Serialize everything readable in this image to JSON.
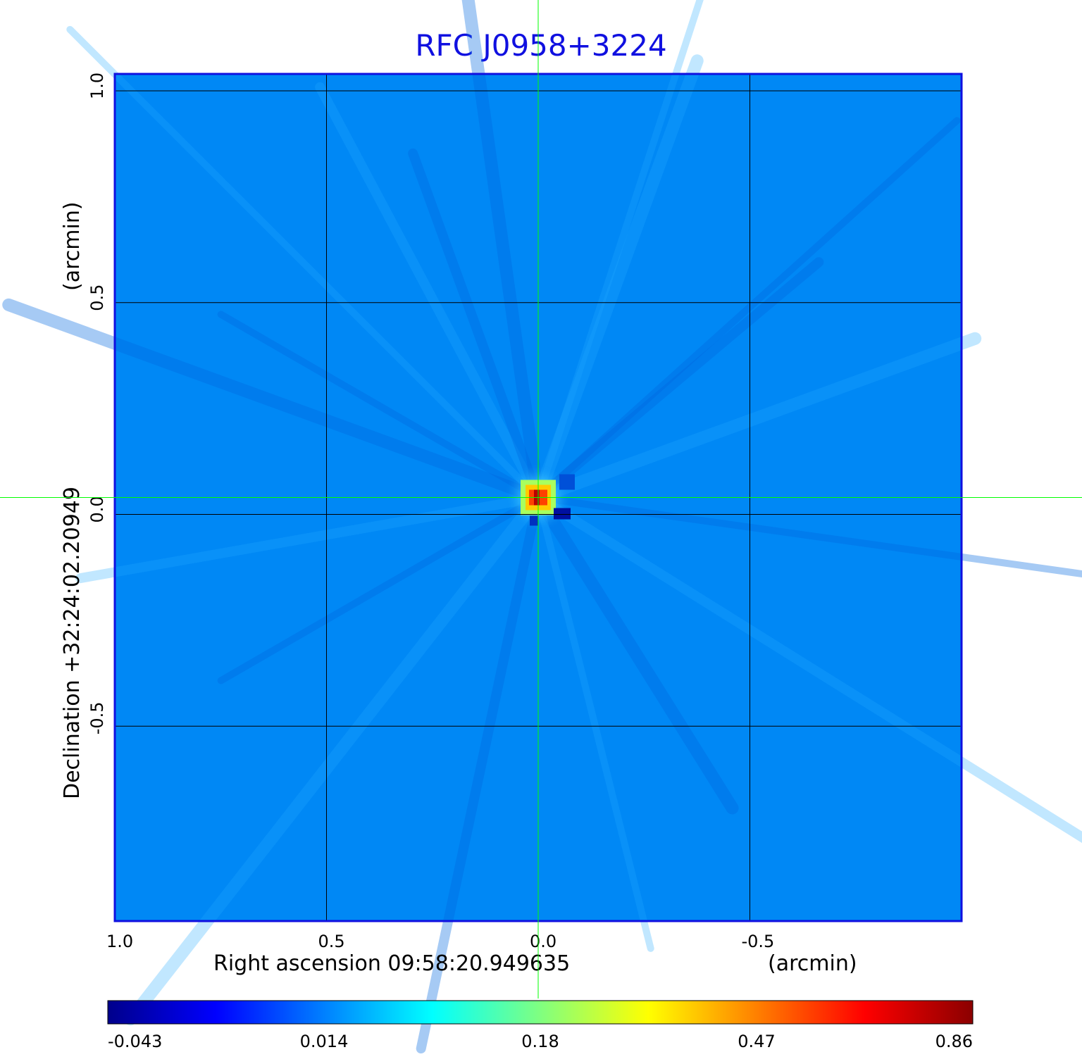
{
  "chart_data": {
    "type": "heatmap",
    "title": "RFC J0958+3224",
    "xlabel": "Right ascension  09:58:20.949635",
    "xunit": "(arcmin)",
    "ylabel": "Declination  +32:24:02.20949",
    "yunit": "(arcmin)",
    "x_ticks": [
      {
        "value": 1.0,
        "label": "1.0"
      },
      {
        "value": 0.5,
        "label": "0.5"
      },
      {
        "value": 0.0,
        "label": "0.0"
      },
      {
        "value": -0.5,
        "label": "-0.5"
      }
    ],
    "y_ticks": [
      {
        "value": 1.0,
        "label": "1.0"
      },
      {
        "value": 0.5,
        "label": "0.5"
      },
      {
        "value": 0.0,
        "label": "0.0"
      },
      {
        "value": -0.5,
        "label": "-0.5"
      }
    ],
    "xlim": [
      1.0,
      -1.0
    ],
    "ylim": [
      -0.96,
      1.04
    ],
    "grid": true,
    "crosshair": {
      "x": 0.0,
      "y": 0.04
    },
    "colorbar": {
      "ticks": [
        "-0.043",
        "0.014",
        "0.18",
        "0.47",
        "0.86"
      ],
      "colormap": [
        "#00008b",
        "#0000ff",
        "#0080ff",
        "#00ffff",
        "#80ff80",
        "#ffff00",
        "#ff8000",
        "#ff0000",
        "#8b0000"
      ]
    },
    "source": {
      "ra": 0.0,
      "dec": 0.04,
      "peak": 0.86
    },
    "background_level": 0.0,
    "colors": {
      "background": "#0088f5",
      "frame": "#1010e0",
      "grid": "#000000",
      "crosshair": "#00ff00",
      "title": "#1010e0"
    }
  }
}
